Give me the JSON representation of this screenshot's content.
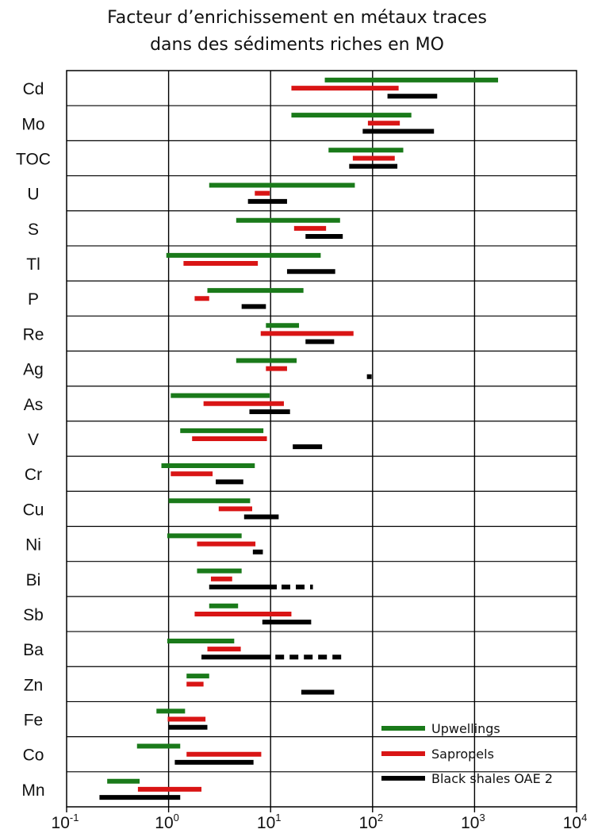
{
  "title_line1": "Facteur d’enrichissement en métaux traces",
  "title_line2": "dans des sédiments riches en MO",
  "chart_data": {
    "type": "range-bar",
    "x_scale": "log",
    "xlim": [
      0.1,
      10000
    ],
    "x_ticks": [
      {
        "base": "10",
        "exp": "-1",
        "value": 0.1
      },
      {
        "base": "10",
        "exp": "0",
        "value": 1
      },
      {
        "base": "10",
        "exp": "1",
        "value": 10
      },
      {
        "base": "10",
        "exp": "2",
        "value": 100
      },
      {
        "base": "10",
        "exp": "3",
        "value": 1000
      },
      {
        "base": "10",
        "exp": "4",
        "value": 10000
      }
    ],
    "grid": "vertical at decades",
    "legend_position": "bottom-right",
    "series": [
      {
        "name": "Upwellings",
        "color": "#1a7a1a"
      },
      {
        "name": "Sapropels",
        "color": "#d91515"
      },
      {
        "name": "Black shales OAE 2",
        "color": "#000000"
      }
    ],
    "categories": [
      {
        "label": "Cd",
        "up": [
          34,
          1700
        ],
        "sap": [
          16,
          180
        ],
        "bs": [
          140,
          430
        ]
      },
      {
        "label": "Mo",
        "up": [
          16,
          240
        ],
        "sap": [
          90,
          185
        ],
        "bs": [
          80,
          400
        ]
      },
      {
        "label": "TOC",
        "up": [
          37,
          200
        ],
        "sap": [
          64,
          165
        ],
        "bs": [
          59,
          175
        ]
      },
      {
        "label": "U",
        "up": [
          2.5,
          67
        ],
        "sap": [
          7,
          9.8
        ],
        "bs": [
          6,
          14.5
        ]
      },
      {
        "label": "S",
        "up": [
          4.6,
          48
        ],
        "sap": [
          17,
          35
        ],
        "bs": [
          22,
          51
        ]
      },
      {
        "label": "Tl",
        "up": [
          0.95,
          31
        ],
        "sap": [
          1.4,
          7.5
        ],
        "bs": [
          14.5,
          43
        ]
      },
      {
        "label": "P",
        "up": [
          2.4,
          21
        ],
        "sap": [
          1.8,
          2.5
        ],
        "bs": [
          5.2,
          9
        ]
      },
      {
        "label": "Re",
        "up": [
          9,
          19
        ],
        "sap": [
          8,
          65
        ],
        "bs": [
          22,
          42
        ]
      },
      {
        "label": "Ag",
        "up": [
          4.6,
          18
        ],
        "sap": [
          9,
          14.5
        ],
        "bs": [
          88,
          98
        ]
      },
      {
        "label": "As",
        "up": [
          1.05,
          9.8
        ],
        "sap": [
          2.2,
          13.5
        ],
        "bs": [
          6.2,
          15.5
        ]
      },
      {
        "label": "V",
        "up": [
          1.3,
          8.5
        ],
        "sap": [
          1.7,
          9.2
        ],
        "bs": [
          16.5,
          32
        ]
      },
      {
        "label": "Cr",
        "up": [
          0.85,
          7
        ],
        "sap": [
          1.05,
          2.7
        ],
        "bs": [
          2.9,
          5.4
        ]
      },
      {
        "label": "Cu",
        "up": [
          1.0,
          6.3
        ],
        "sap": [
          3.1,
          6.6
        ],
        "bs": [
          5.5,
          12
        ]
      },
      {
        "label": "Ni",
        "up": [
          0.97,
          5.2
        ],
        "sap": [
          1.9,
          7.1
        ],
        "bs": [
          6.7,
          8.4
        ]
      },
      {
        "label": "Bi",
        "up": [
          1.9,
          5.2
        ],
        "sap": [
          2.6,
          4.2
        ],
        "bs": [
          2.5,
          11.5
        ],
        "bs_dashed_to": 26
      },
      {
        "label": "Sb",
        "up": [
          2.5,
          4.8
        ],
        "sap": [
          1.8,
          16
        ],
        "bs": [
          8.3,
          25
        ]
      },
      {
        "label": "Ba",
        "up": [
          0.97,
          4.4
        ],
        "sap": [
          2.4,
          5.1
        ],
        "bs": [
          2.1,
          10
        ],
        "bs_dashed_to": 50
      },
      {
        "label": "Zn",
        "up": [
          1.5,
          2.5
        ],
        "sap": [
          1.5,
          2.2
        ],
        "bs": [
          20,
          42
        ]
      },
      {
        "label": "Fe",
        "up": [
          0.76,
          1.45
        ],
        "sap": [
          0.98,
          2.3
        ],
        "bs": [
          0.99,
          2.4
        ]
      },
      {
        "label": "Co",
        "up": [
          0.49,
          1.3
        ],
        "sap": [
          1.5,
          8.1
        ],
        "bs": [
          1.15,
          6.8
        ]
      },
      {
        "label": "Mn",
        "up": [
          0.25,
          0.52
        ],
        "sap": [
          0.5,
          2.1
        ],
        "bs": [
          0.21,
          1.3
        ]
      }
    ]
  }
}
